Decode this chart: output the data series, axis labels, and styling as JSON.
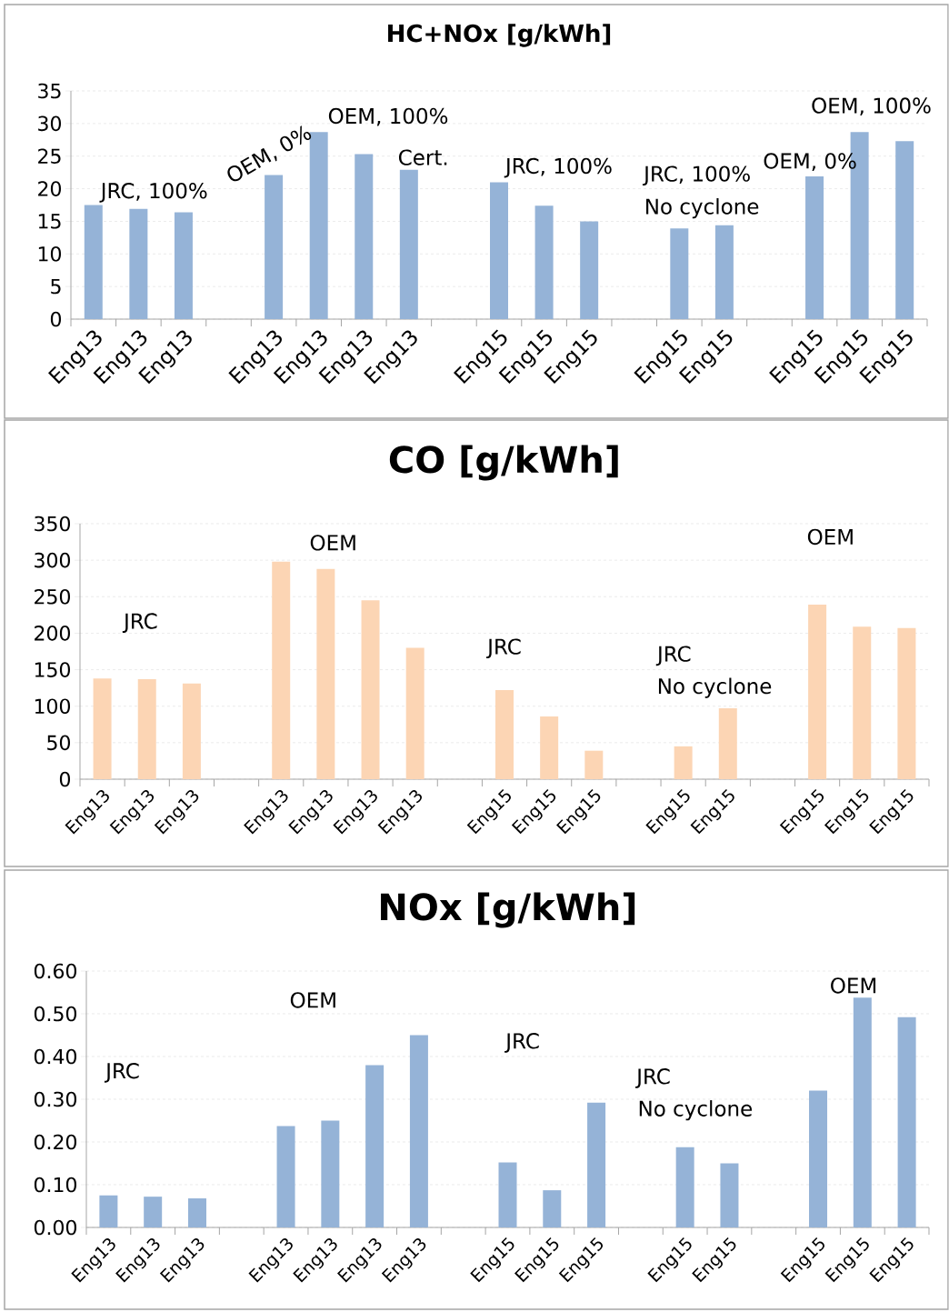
{
  "chart_data": [
    {
      "type": "bar",
      "title": "HC+NOx   [g/kWh]",
      "color": "#95b3d7",
      "grid": "y",
      "categories": [
        "Eng13",
        "Eng13",
        "Eng13",
        null,
        "Eng13",
        "Eng13",
        "Eng13",
        "Eng13",
        null,
        "Eng15",
        "Eng15",
        "Eng15",
        null,
        "Eng15",
        "Eng15",
        null,
        "Eng15",
        "Eng15",
        "Eng15"
      ],
      "values": [
        17.5,
        16.9,
        16.4,
        null,
        22.1,
        28.7,
        25.3,
        22.9,
        null,
        21.0,
        17.4,
        15.0,
        null,
        13.9,
        14.4,
        null,
        21.9,
        28.7,
        27.3
      ],
      "ylim": [
        0,
        35
      ],
      "yticks": [
        0,
        5,
        10,
        15,
        20,
        25,
        30,
        35
      ],
      "annotations": [
        "JRC, 100%",
        "OEM, 0%",
        "OEM, 100%",
        "Cert.",
        "JRC, 100%",
        "JRC, 100%",
        "No cyclone",
        "OEM, 0%",
        "OEM, 100%"
      ]
    },
    {
      "type": "bar",
      "title": "CO   [g/kWh]",
      "color": "#fcd5b4",
      "grid": "y",
      "categories": [
        "Eng13",
        "Eng13",
        "Eng13",
        null,
        "Eng13",
        "Eng13",
        "Eng13",
        "Eng13",
        null,
        "Eng15",
        "Eng15",
        "Eng15",
        null,
        "Eng15",
        "Eng15",
        null,
        "Eng15",
        "Eng15",
        "Eng15"
      ],
      "values": [
        138,
        137,
        131,
        null,
        298,
        288,
        245,
        180,
        null,
        122,
        86,
        39,
        null,
        45,
        97,
        null,
        239,
        209,
        207
      ],
      "ylim": [
        0,
        350
      ],
      "yticks": [
        0,
        50,
        100,
        150,
        200,
        250,
        300,
        350
      ],
      "annotations": [
        "JRC",
        "OEM",
        "JRC",
        "JRC",
        "No cyclone",
        "OEM"
      ]
    },
    {
      "type": "bar",
      "title": "NOx   [g/kWh]",
      "color": "#95b3d7",
      "grid": "y",
      "categories": [
        "Eng13",
        "Eng13",
        "Eng13",
        null,
        "Eng13",
        "Eng13",
        "Eng13",
        "Eng13",
        null,
        "Eng15",
        "Eng15",
        "Eng15",
        null,
        "Eng15",
        "Eng15",
        null,
        "Eng15",
        "Eng15",
        "Eng15"
      ],
      "values": [
        0.075,
        0.072,
        0.068,
        null,
        0.237,
        0.25,
        0.38,
        0.45,
        null,
        0.152,
        0.087,
        0.292,
        null,
        0.188,
        0.15,
        null,
        0.32,
        0.538,
        0.492
      ],
      "ylim": [
        0,
        0.6
      ],
      "yticks": [
        {
          "value": 0,
          "label": "0.00"
        },
        {
          "value": 0.1,
          "label": "0.10"
        },
        {
          "value": 0.2,
          "label": "0.20"
        },
        {
          "value": 0.3,
          "label": "0.30"
        },
        {
          "value": 0.4,
          "label": "0.40"
        },
        {
          "value": 0.5,
          "label": "0.50"
        },
        {
          "value": 0.6,
          "label": "0.60"
        }
      ],
      "annotations": [
        "JRC",
        "OEM",
        "JRC",
        "JRC",
        "No cyclone",
        "OEM"
      ]
    }
  ]
}
